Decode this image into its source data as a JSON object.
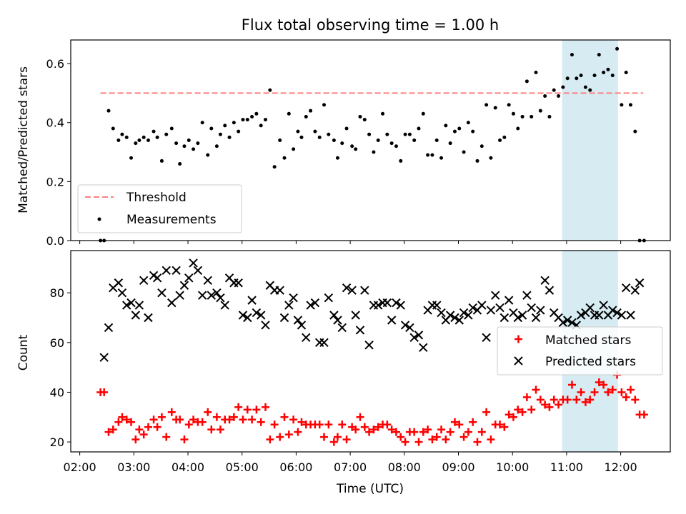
{
  "chart_data": [
    {
      "type": "scatter",
      "title": "Flux total observing time = 1.00 h",
      "ylabel": "Matched/Predicted stars",
      "xlim": [
        "01:50",
        "12:55"
      ],
      "ylim": [
        0,
        0.68
      ],
      "yticks": [
        0.0,
        0.2,
        0.4,
        0.6
      ],
      "ytick_labels": [
        "0.0",
        "0.2",
        "0.4",
        "0.6"
      ],
      "grid": false,
      "legend": {
        "position": "lower-left",
        "entries": [
          "Threshold",
          "Measurements"
        ]
      },
      "highlight_span": [
        "10:55",
        "11:57"
      ],
      "highlight_color": "#add8e6",
      "threshold": {
        "name": "Threshold",
        "value": 0.5,
        "x_range": [
          "02:23",
          "12:25"
        ],
        "color": "#ff7f7f"
      },
      "series": [
        {
          "name": "Measurements",
          "color": "#000000",
          "x": [
            "02:23",
            "02:27",
            "02:32",
            "02:37",
            "02:43",
            "02:47",
            "02:52",
            "02:57",
            "03:02",
            "03:06",
            "03:11",
            "03:16",
            "03:22",
            "03:26",
            "03:31",
            "03:36",
            "03:42",
            "03:47",
            "03:51",
            "03:56",
            "04:01",
            "04:06",
            "04:11",
            "04:16",
            "04:22",
            "04:26",
            "04:32",
            "04:36",
            "04:41",
            "04:46",
            "04:51",
            "04:56",
            "05:01",
            "05:06",
            "05:11",
            "05:16",
            "05:21",
            "05:26",
            "05:31",
            "05:36",
            "05:42",
            "05:47",
            "05:52",
            "05:57",
            "06:02",
            "06:06",
            "06:11",
            "06:16",
            "06:21",
            "06:26",
            "06:31",
            "06:36",
            "06:42",
            "06:46",
            "06:51",
            "06:56",
            "07:02",
            "07:06",
            "07:11",
            "07:16",
            "07:21",
            "07:26",
            "07:31",
            "07:36",
            "07:41",
            "07:46",
            "07:51",
            "07:56",
            "08:01",
            "08:06",
            "08:11",
            "08:16",
            "08:21",
            "08:26",
            "08:31",
            "08:36",
            "08:41",
            "08:46",
            "08:51",
            "08:56",
            "09:01",
            "09:06",
            "09:11",
            "09:16",
            "09:21",
            "09:26",
            "09:31",
            "09:36",
            "09:41",
            "09:46",
            "09:51",
            "09:56",
            "10:01",
            "10:06",
            "10:11",
            "10:16",
            "10:21",
            "10:26",
            "10:31",
            "10:36",
            "10:41",
            "10:46",
            "10:51",
            "10:56",
            "11:01",
            "11:06",
            "11:11",
            "11:16",
            "11:21",
            "11:26",
            "11:31",
            "11:36",
            "11:41",
            "11:46",
            "11:51",
            "11:56",
            "12:01",
            "12:06",
            "12:11",
            "12:16",
            "12:21",
            "12:26"
          ],
          "y": [
            0.0,
            0.0,
            0.44,
            0.38,
            0.34,
            0.36,
            0.35,
            0.28,
            0.33,
            0.34,
            0.35,
            0.34,
            0.37,
            0.35,
            0.27,
            0.36,
            0.38,
            0.33,
            0.26,
            0.32,
            0.34,
            0.31,
            0.33,
            0.4,
            0.29,
            0.38,
            0.32,
            0.36,
            0.39,
            0.35,
            0.4,
            0.37,
            0.41,
            0.41,
            0.42,
            0.43,
            0.39,
            0.41,
            0.51,
            0.25,
            0.34,
            0.28,
            0.43,
            0.31,
            0.37,
            0.35,
            0.42,
            0.44,
            0.37,
            0.35,
            0.46,
            0.36,
            0.34,
            0.28,
            0.33,
            0.38,
            0.32,
            0.31,
            0.42,
            0.41,
            0.36,
            0.3,
            0.34,
            0.43,
            0.36,
            0.33,
            0.32,
            0.27,
            0.36,
            0.36,
            0.34,
            0.38,
            0.43,
            0.29,
            0.29,
            0.34,
            0.28,
            0.39,
            0.33,
            0.37,
            0.38,
            0.3,
            0.4,
            0.37,
            0.27,
            0.32,
            0.46,
            0.28,
            0.45,
            0.34,
            0.35,
            0.46,
            0.43,
            0.38,
            0.42,
            0.54,
            0.42,
            0.57,
            0.44,
            0.49,
            0.42,
            0.51,
            0.49,
            0.52,
            0.55,
            0.63,
            0.55,
            0.56,
            0.52,
            0.51,
            0.56,
            0.63,
            0.57,
            0.58,
            0.56,
            0.65,
            0.46,
            0.57,
            0.46,
            0.37,
            0.0,
            0.0
          ]
        }
      ]
    },
    {
      "type": "scatter",
      "xlabel": "Time (UTC)",
      "ylabel": "Count",
      "xlim": [
        "01:50",
        "12:55"
      ],
      "ylim": [
        16,
        97
      ],
      "yticks": [
        20,
        40,
        60,
        80
      ],
      "ytick_labels": [
        "20",
        "40",
        "60",
        "80"
      ],
      "xticks": [
        "02:00",
        "03:00",
        "04:00",
        "05:00",
        "06:00",
        "07:00",
        "08:00",
        "09:00",
        "10:00",
        "11:00",
        "12:00"
      ],
      "grid": false,
      "legend": {
        "position": "right",
        "entries": [
          "Matched stars",
          "Predicted stars"
        ]
      },
      "highlight_span": [
        "10:55",
        "11:57"
      ],
      "series": [
        {
          "name": "Matched stars",
          "color": "#ff0000",
          "marker": "plus",
          "x": [
            "02:23",
            "02:27",
            "02:32",
            "02:37",
            "02:43",
            "02:47",
            "02:52",
            "02:57",
            "03:02",
            "03:06",
            "03:11",
            "03:16",
            "03:22",
            "03:26",
            "03:31",
            "03:36",
            "03:42",
            "03:47",
            "03:51",
            "03:56",
            "04:01",
            "04:06",
            "04:11",
            "04:16",
            "04:22",
            "04:26",
            "04:32",
            "04:36",
            "04:41",
            "04:46",
            "04:51",
            "04:56",
            "05:01",
            "05:06",
            "05:11",
            "05:16",
            "05:21",
            "05:26",
            "05:31",
            "05:36",
            "05:42",
            "05:47",
            "05:52",
            "05:57",
            "06:02",
            "06:06",
            "06:11",
            "06:16",
            "06:21",
            "06:26",
            "06:31",
            "06:36",
            "06:42",
            "06:46",
            "06:51",
            "06:56",
            "07:02",
            "07:06",
            "07:11",
            "07:16",
            "07:21",
            "07:26",
            "07:31",
            "07:36",
            "07:41",
            "07:46",
            "07:51",
            "07:56",
            "08:01",
            "08:06",
            "08:11",
            "08:16",
            "08:21",
            "08:26",
            "08:31",
            "08:36",
            "08:41",
            "08:46",
            "08:51",
            "08:56",
            "09:01",
            "09:06",
            "09:11",
            "09:16",
            "09:21",
            "09:26",
            "09:31",
            "09:36",
            "09:41",
            "09:46",
            "09:51",
            "09:56",
            "10:01",
            "10:06",
            "10:11",
            "10:16",
            "10:21",
            "10:26",
            "10:31",
            "10:36",
            "10:41",
            "10:46",
            "10:51",
            "10:56",
            "11:01",
            "11:06",
            "11:11",
            "11:16",
            "11:21",
            "11:26",
            "11:31",
            "11:36",
            "11:41",
            "11:46",
            "11:51",
            "11:56",
            "12:01",
            "12:06",
            "12:11",
            "12:16",
            "12:21",
            "12:26"
          ],
          "y": [
            40,
            40,
            24,
            25,
            28,
            30,
            29,
            28,
            21,
            25,
            23,
            26,
            29,
            26,
            30,
            22,
            32,
            29,
            29,
            21,
            27,
            29,
            28,
            28,
            32,
            25,
            30,
            25,
            29,
            29,
            30,
            34,
            29,
            33,
            29,
            33,
            28,
            34,
            21,
            27,
            22,
            30,
            23,
            29,
            24,
            28,
            27,
            27,
            27,
            27,
            22,
            27,
            20,
            22,
            27,
            21,
            26,
            25,
            30,
            26,
            24,
            25,
            26,
            27,
            27,
            25,
            24,
            22,
            20,
            24,
            24,
            20,
            24,
            25,
            21,
            22,
            25,
            21,
            24,
            28,
            27,
            22,
            24,
            28,
            20,
            24,
            32,
            21,
            27,
            27,
            26,
            31,
            30,
            33,
            32,
            38,
            33,
            41,
            37,
            35,
            34,
            37,
            35,
            37,
            37,
            43,
            37,
            40,
            36,
            37,
            40,
            44,
            43,
            40,
            41,
            47,
            40,
            38,
            41,
            37,
            31,
            31
          ]
        },
        {
          "name": "Predicted stars",
          "color": "#000000",
          "marker": "x",
          "x": [
            "02:27",
            "02:32",
            "02:37",
            "02:43",
            "02:47",
            "02:52",
            "02:57",
            "03:02",
            "03:06",
            "03:11",
            "03:16",
            "03:22",
            "03:26",
            "03:31",
            "03:36",
            "03:42",
            "03:47",
            "03:51",
            "03:56",
            "04:01",
            "04:06",
            "04:11",
            "04:16",
            "04:22",
            "04:26",
            "04:32",
            "04:36",
            "04:41",
            "04:46",
            "04:51",
            "04:56",
            "05:01",
            "05:06",
            "05:11",
            "05:16",
            "05:21",
            "05:26",
            "05:31",
            "05:36",
            "05:42",
            "05:47",
            "05:52",
            "05:57",
            "06:02",
            "06:06",
            "06:11",
            "06:16",
            "06:21",
            "06:26",
            "06:31",
            "06:36",
            "06:42",
            "06:46",
            "06:51",
            "06:56",
            "07:02",
            "07:06",
            "07:11",
            "07:16",
            "07:21",
            "07:26",
            "07:31",
            "07:36",
            "07:41",
            "07:46",
            "07:51",
            "07:56",
            "08:01",
            "08:06",
            "08:11",
            "08:16",
            "08:21",
            "08:26",
            "08:31",
            "08:36",
            "08:41",
            "08:46",
            "08:51",
            "08:56",
            "09:01",
            "09:06",
            "09:11",
            "09:16",
            "09:21",
            "09:26",
            "09:31",
            "09:36",
            "09:41",
            "09:46",
            "09:51",
            "09:56",
            "10:01",
            "10:06",
            "10:11",
            "10:16",
            "10:21",
            "10:26",
            "10:31",
            "10:36",
            "10:41",
            "10:46",
            "10:51",
            "10:56",
            "11:01",
            "11:06",
            "11:11",
            "11:16",
            "11:21",
            "11:26",
            "11:31",
            "11:36",
            "11:41",
            "11:46",
            "11:51",
            "11:56",
            "12:01",
            "12:06",
            "12:11",
            "12:16",
            "12:21"
          ],
          "y": [
            54,
            66,
            82,
            84,
            80,
            75,
            76,
            71,
            75,
            85,
            70,
            87,
            86,
            80,
            89,
            76,
            89,
            79,
            83,
            86,
            92,
            89,
            79,
            85,
            79,
            80,
            78,
            75,
            86,
            84,
            84,
            71,
            70,
            77,
            72,
            71,
            67,
            83,
            81,
            81,
            70,
            75,
            78,
            69,
            67,
            62,
            75,
            76,
            60,
            60,
            78,
            71,
            69,
            66,
            82,
            81,
            71,
            65,
            81,
            59,
            75,
            75,
            76,
            76,
            69,
            76,
            75,
            67,
            66,
            62,
            63,
            58,
            73,
            75,
            75,
            72,
            69,
            71,
            70,
            69,
            72,
            71,
            74,
            73,
            75,
            62,
            73,
            79,
            74,
            70,
            77,
            72,
            70,
            71,
            79,
            74,
            70,
            73,
            85,
            81,
            72,
            70,
            68,
            69,
            68,
            67,
            71,
            72,
            74,
            71,
            71,
            75,
            71,
            73,
            72,
            71,
            82,
            71,
            81,
            84
          ]
        }
      ]
    }
  ]
}
